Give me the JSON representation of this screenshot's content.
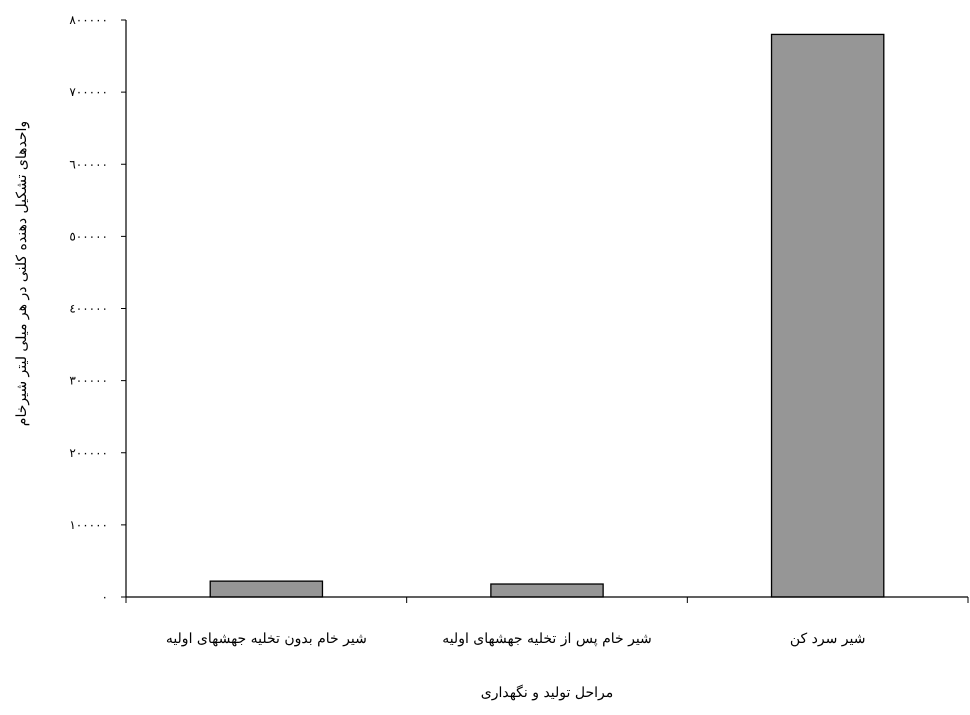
{
  "chart_data": {
    "type": "bar",
    "categories": [
      "شیر خام بدون تخلیه جهشهای اولیه",
      "شیر خام پس از تخلیه جهشهای اولیه",
      "شیر سرد کن"
    ],
    "series": [
      {
        "values": [
          22000,
          18000,
          780000
        ]
      }
    ],
    "ylim": [
      0,
      800000
    ],
    "yticks": [
      0,
      100000,
      200000,
      300000,
      400000,
      500000,
      600000,
      700000,
      800000
    ],
    "ytick_labels": [
      "٠",
      "١٠٠٠٠٠",
      "٢٠٠٠٠٠",
      "٣٠٠٠٠٠",
      "٤٠٠٠٠٠",
      "٥٠٠٠٠٠",
      "٦٠٠٠٠٠",
      "٧٠٠٠٠٠",
      "٨٠٠٠٠٠"
    ],
    "xlabel": "مراحل تولید و نگهداری",
    "ylabel": "واحدهای تشکیل دهنده کلنی در هر میلی لیتر شیرخام",
    "grid": false,
    "legend": "none",
    "bar_color": "#969696"
  }
}
